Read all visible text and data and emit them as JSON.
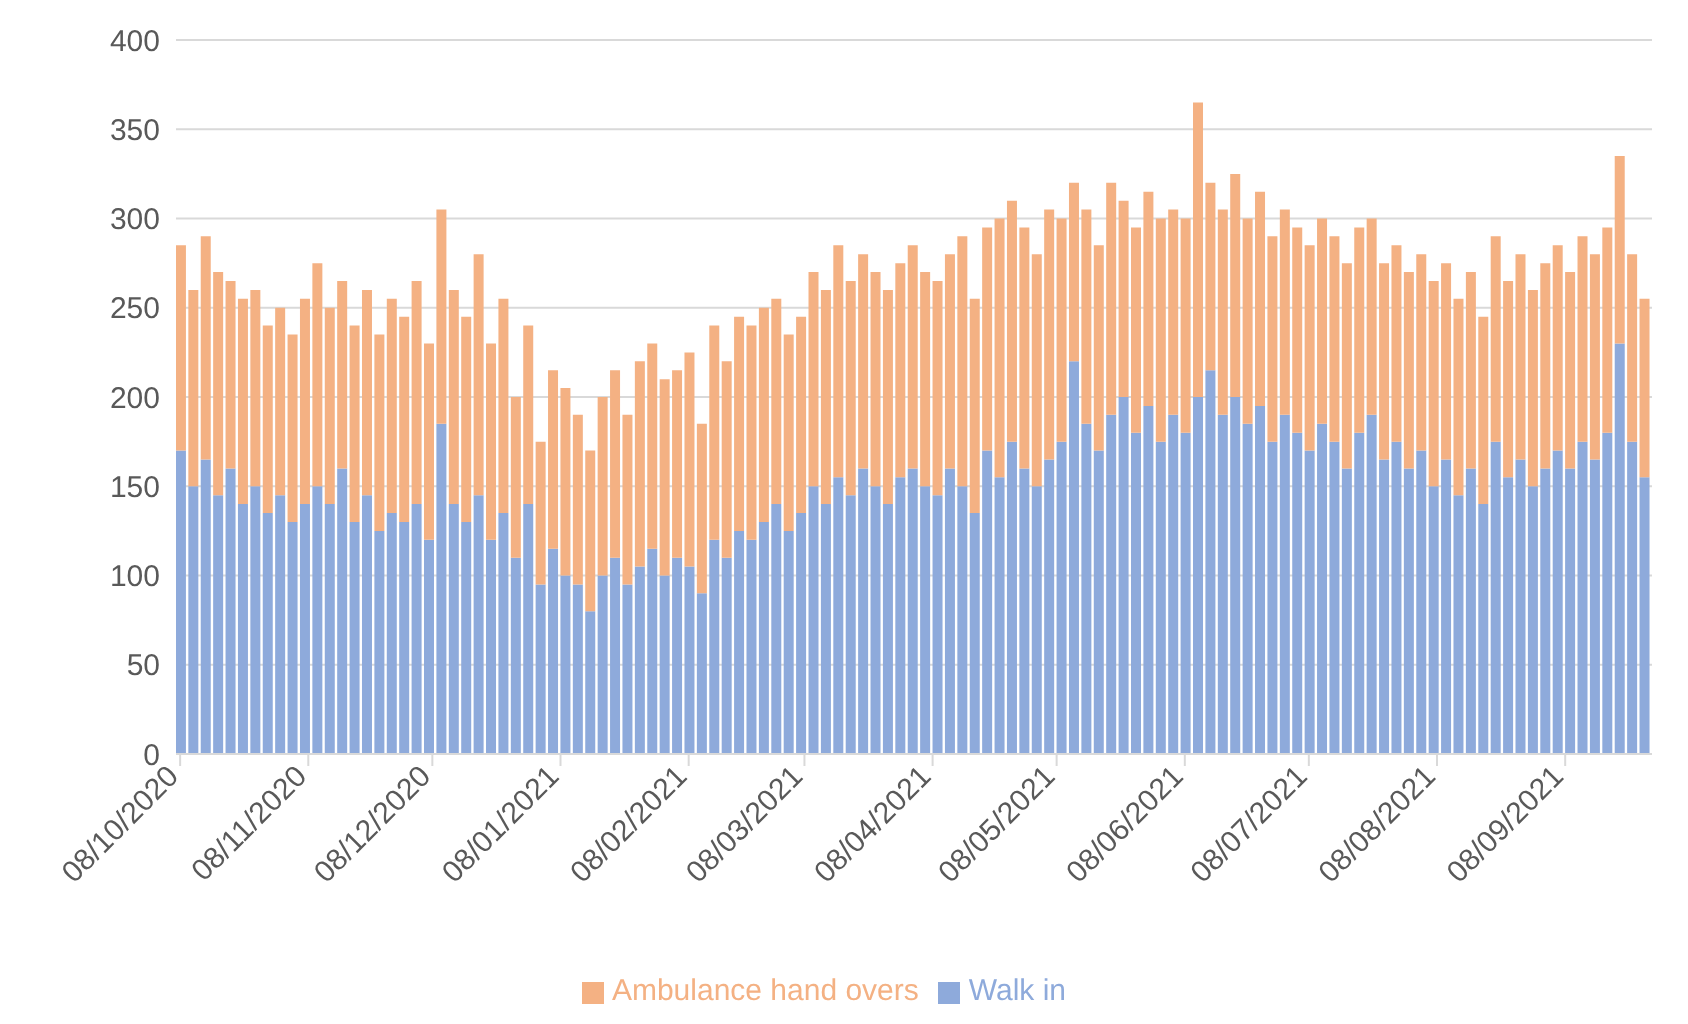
{
  "chart_data": {
    "type": "bar",
    "stacked": true,
    "x": [
      "2020-10-08",
      "2020-10-11",
      "2020-10-14",
      "2020-10-17",
      "2020-10-20",
      "2020-10-23",
      "2020-10-26",
      "2020-10-29",
      "2020-11-01",
      "2020-11-04",
      "2020-11-07",
      "2020-11-10",
      "2020-11-13",
      "2020-11-16",
      "2020-11-19",
      "2020-11-22",
      "2020-11-25",
      "2020-11-28",
      "2020-12-01",
      "2020-12-04",
      "2020-12-07",
      "2020-12-10",
      "2020-12-13",
      "2020-12-16",
      "2020-12-19",
      "2020-12-22",
      "2020-12-25",
      "2020-12-28",
      "2020-12-31",
      "2021-01-03",
      "2021-01-06",
      "2021-01-09",
      "2021-01-12",
      "2021-01-15",
      "2021-01-18",
      "2021-01-21",
      "2021-01-24",
      "2021-01-27",
      "2021-01-30",
      "2021-02-02",
      "2021-02-05",
      "2021-02-08",
      "2021-02-11",
      "2021-02-14",
      "2021-02-17",
      "2021-02-20",
      "2021-02-23",
      "2021-02-26",
      "2021-03-01",
      "2021-03-04",
      "2021-03-07",
      "2021-03-10",
      "2021-03-13",
      "2021-03-16",
      "2021-03-19",
      "2021-03-22",
      "2021-03-25",
      "2021-03-28",
      "2021-03-31",
      "2021-04-03",
      "2021-04-06",
      "2021-04-09",
      "2021-04-12",
      "2021-04-15",
      "2021-04-18",
      "2021-04-21",
      "2021-04-24",
      "2021-04-27",
      "2021-04-30",
      "2021-05-03",
      "2021-05-06",
      "2021-05-09",
      "2021-05-12",
      "2021-05-15",
      "2021-05-18",
      "2021-05-21",
      "2021-05-24",
      "2021-05-27",
      "2021-05-30",
      "2021-06-02",
      "2021-06-05",
      "2021-06-08",
      "2021-06-11",
      "2021-06-14",
      "2021-06-17",
      "2021-06-20",
      "2021-06-23",
      "2021-06-26",
      "2021-06-29",
      "2021-07-02",
      "2021-07-05",
      "2021-07-08",
      "2021-07-11",
      "2021-07-14",
      "2021-07-17",
      "2021-07-20",
      "2021-07-23",
      "2021-07-26",
      "2021-07-29",
      "2021-08-01",
      "2021-08-04",
      "2021-08-07",
      "2021-08-10",
      "2021-08-13",
      "2021-08-16",
      "2021-08-19",
      "2021-08-22",
      "2021-08-25",
      "2021-08-28",
      "2021-08-31",
      "2021-09-03",
      "2021-09-06",
      "2021-09-09",
      "2021-09-12",
      "2021-09-15",
      "2021-09-18",
      "2021-09-21",
      "2021-09-24",
      "2021-09-27"
    ],
    "series": [
      {
        "name": "Walk in",
        "color": "#8eaadb",
        "values": [
          170,
          150,
          165,
          145,
          160,
          140,
          150,
          135,
          145,
          130,
          140,
          150,
          140,
          160,
          130,
          145,
          125,
          135,
          130,
          140,
          120,
          185,
          140,
          130,
          145,
          120,
          135,
          110,
          140,
          95,
          115,
          100,
          95,
          80,
          100,
          110,
          95,
          105,
          115,
          100,
          110,
          105,
          90,
          120,
          110,
          125,
          120,
          130,
          140,
          125,
          135,
          150,
          140,
          155,
          145,
          160,
          150,
          140,
          155,
          160,
          150,
          145,
          160,
          150,
          135,
          170,
          155,
          175,
          160,
          150,
          165,
          175,
          220,
          185,
          170,
          190,
          200,
          180,
          195,
          175,
          190,
          180,
          200,
          215,
          190,
          200,
          185,
          195,
          175,
          190,
          180,
          170,
          185,
          175,
          160,
          180,
          190,
          165,
          175,
          160,
          170,
          150,
          165,
          145,
          160,
          140,
          175,
          155,
          165,
          150,
          160,
          170,
          160,
          175,
          165,
          180,
          230,
          175,
          155
        ]
      },
      {
        "name": "Ambulance hand overs",
        "color": "#f4b183",
        "values": [
          115,
          110,
          125,
          125,
          105,
          115,
          110,
          105,
          105,
          105,
          115,
          125,
          110,
          105,
          110,
          115,
          110,
          120,
          115,
          125,
          110,
          120,
          120,
          115,
          135,
          110,
          120,
          90,
          100,
          80,
          100,
          105,
          95,
          90,
          100,
          105,
          95,
          115,
          115,
          110,
          105,
          120,
          95,
          120,
          110,
          120,
          120,
          120,
          115,
          110,
          110,
          120,
          120,
          130,
          120,
          120,
          120,
          120,
          120,
          125,
          120,
          120,
          120,
          140,
          120,
          125,
          145,
          135,
          135,
          130,
          140,
          125,
          100,
          120,
          115,
          130,
          110,
          115,
          120,
          125,
          115,
          120,
          165,
          105,
          115,
          125,
          115,
          120,
          115,
          115,
          115,
          115,
          115,
          115,
          115,
          115,
          110,
          110,
          110,
          110,
          110,
          115,
          110,
          110,
          110,
          105,
          115,
          110,
          115,
          110,
          115,
          115,
          110,
          115,
          115,
          115,
          105,
          105,
          100
        ]
      }
    ],
    "xlim": [
      "2020-10-07",
      "2021-09-29"
    ],
    "xticks": [
      {
        "value": "2020-10-08",
        "label": "08/10/2020"
      },
      {
        "value": "2020-11-08",
        "label": "08/11/2020"
      },
      {
        "value": "2020-12-08",
        "label": "08/12/2020"
      },
      {
        "value": "2021-01-08",
        "label": "08/01/2021"
      },
      {
        "value": "2021-02-08",
        "label": "08/02/2021"
      },
      {
        "value": "2021-03-08",
        "label": "08/03/2021"
      },
      {
        "value": "2021-04-08",
        "label": "08/04/2021"
      },
      {
        "value": "2021-05-08",
        "label": "08/05/2021"
      },
      {
        "value": "2021-06-08",
        "label": "08/06/2021"
      },
      {
        "value": "2021-07-08",
        "label": "08/07/2021"
      },
      {
        "value": "2021-08-08",
        "label": "08/08/2021"
      },
      {
        "value": "2021-09-08",
        "label": "08/09/2021"
      }
    ],
    "ylim": [
      0,
      400
    ],
    "yticks": [
      0,
      50,
      100,
      150,
      200,
      250,
      300,
      350,
      400
    ],
    "grid": "y",
    "legend": "bottom"
  }
}
